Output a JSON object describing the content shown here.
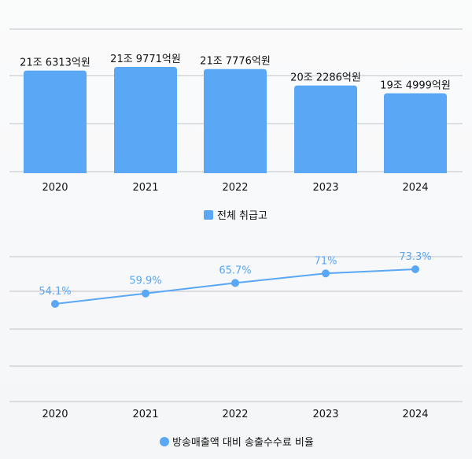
{
  "chart_data": [
    {
      "type": "bar",
      "categories": [
        "2020",
        "2021",
        "2022",
        "2023",
        "2024"
      ],
      "values": [
        216313,
        219771,
        217776,
        202286,
        194999
      ],
      "data_labels": [
        "21조 6313억원",
        "21조 9771억원",
        "21조 7776억원",
        "20조 2286억원",
        "19조 4999억원"
      ],
      "legend": [
        "전체 취급고"
      ],
      "color": "#5aa7f5",
      "grid": true
    },
    {
      "type": "line",
      "x": [
        "2020",
        "2021",
        "2022",
        "2023",
        "2024"
      ],
      "y": [
        54.1,
        59.9,
        65.7,
        71,
        73.3
      ],
      "data_labels": [
        "54.1%",
        "59.9%",
        "65.7%",
        "71%",
        "73.3%"
      ],
      "legend": [
        "방송매출액 대비 송출수수료 비율"
      ],
      "color": "#5aa7f5",
      "grid": true
    }
  ]
}
